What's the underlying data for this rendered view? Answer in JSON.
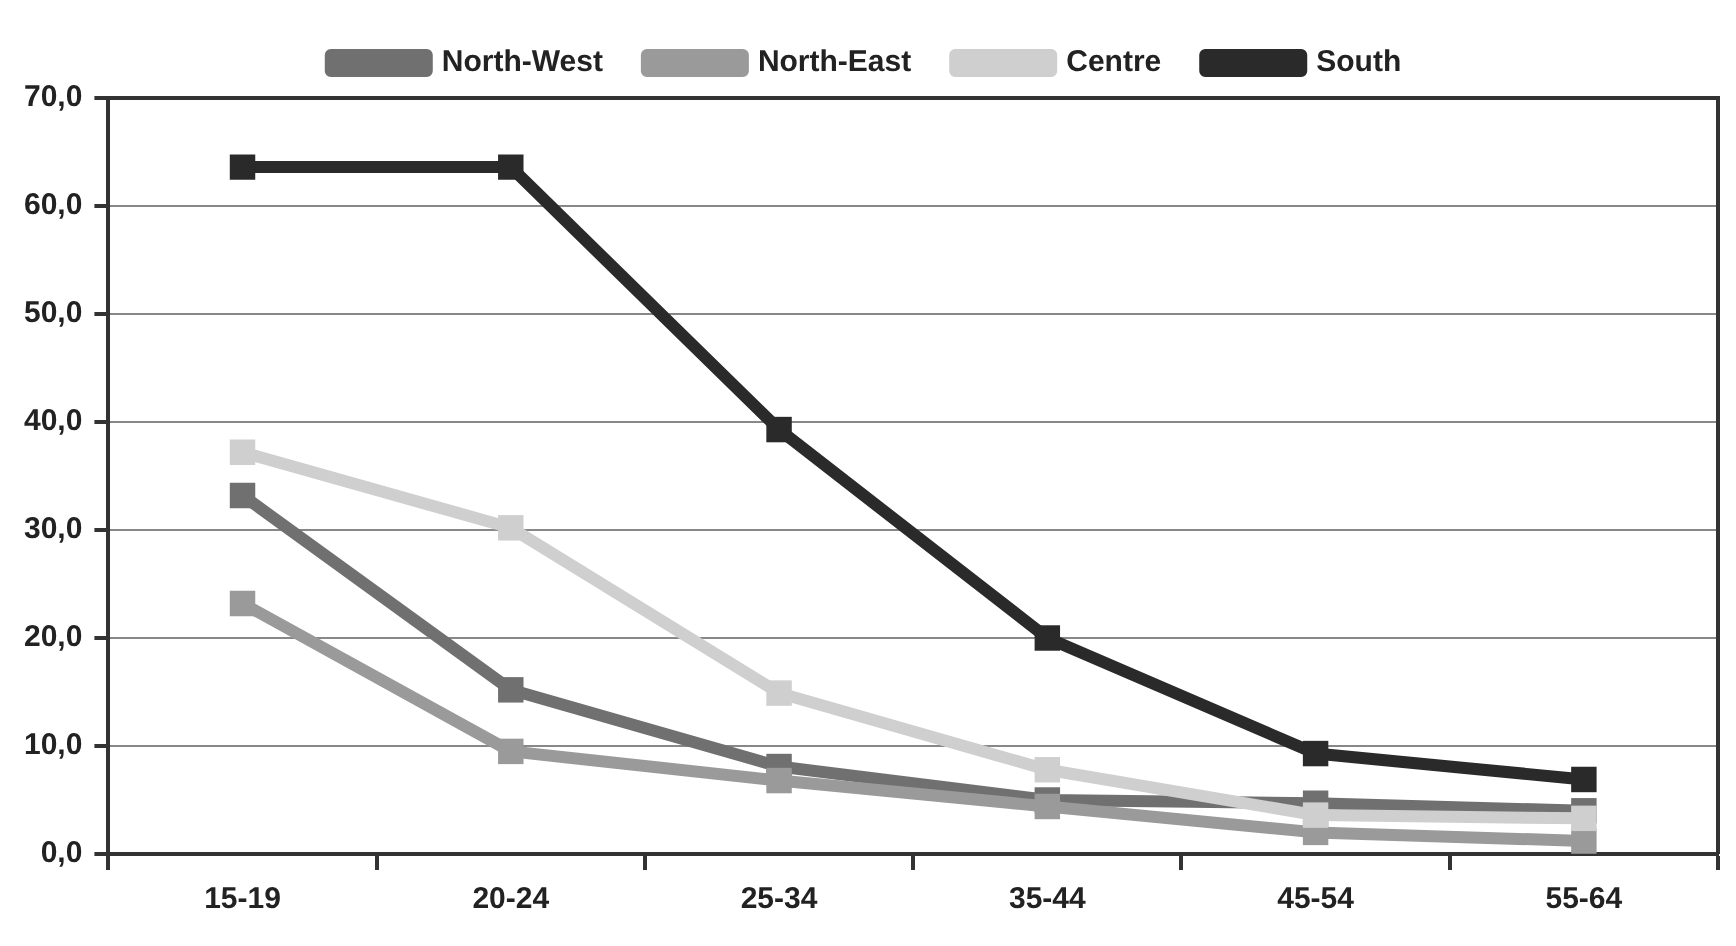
{
  "chart_data": {
    "type": "line",
    "categories": [
      "15-19",
      "20-24",
      "25-34",
      "35-44",
      "45-54",
      "55-64"
    ],
    "series": [
      {
        "name": "North-West",
        "color": "#707070",
        "values": [
          33.2,
          15.2,
          8.1,
          5.0,
          4.7,
          4.0
        ]
      },
      {
        "name": "North-East",
        "color": "#9a9a9a",
        "values": [
          23.2,
          9.5,
          6.8,
          4.4,
          2.0,
          1.2
        ]
      },
      {
        "name": "Centre",
        "color": "#cfcfcf",
        "values": [
          37.2,
          30.2,
          14.9,
          7.8,
          3.6,
          3.3
        ]
      },
      {
        "name": "South",
        "color": "#2a2a2a",
        "values": [
          63.6,
          63.6,
          39.3,
          20.0,
          9.3,
          6.9
        ]
      }
    ],
    "ylim": [
      0,
      70
    ],
    "yticks": [
      {
        "value": 0,
        "label": "0,0"
      },
      {
        "value": 10,
        "label": "10,0"
      },
      {
        "value": 20,
        "label": "20,0"
      },
      {
        "value": 30,
        "label": "30,0"
      },
      {
        "value": 40,
        "label": "40,0"
      },
      {
        "value": 50,
        "label": "50,0"
      },
      {
        "value": 60,
        "label": "60,0"
      },
      {
        "value": 70,
        "label": "70,0"
      }
    ],
    "grid": "y",
    "legend": "top",
    "marker": "square",
    "line_style": "solid"
  }
}
